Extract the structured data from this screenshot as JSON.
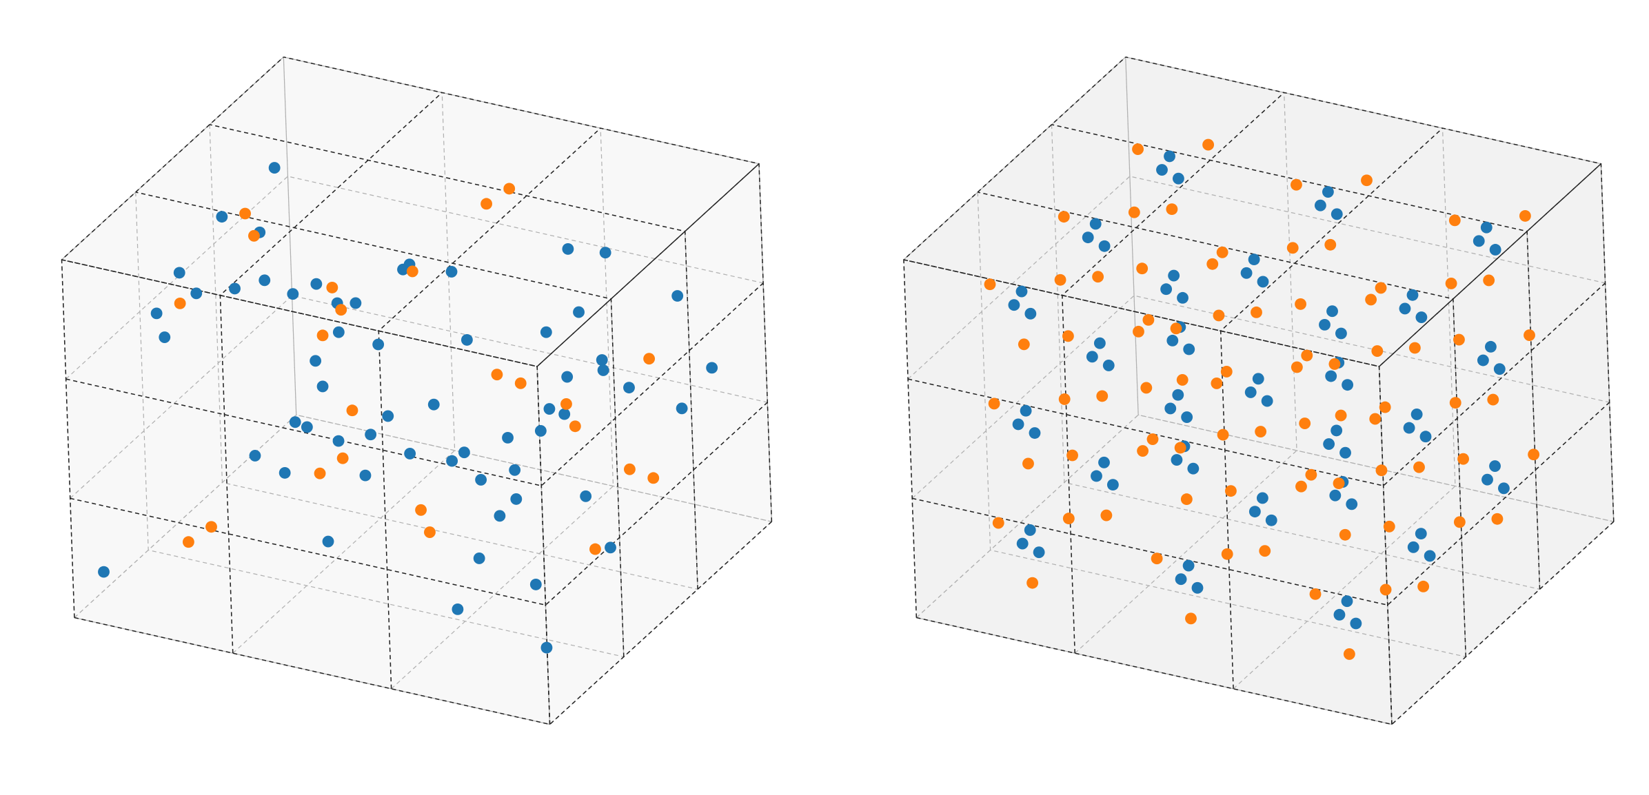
{
  "chart_data": [
    {
      "type": "scatter3d",
      "xlim": [
        0,
        3
      ],
      "ylim": [
        0,
        3
      ],
      "zlim": [
        0,
        3
      ],
      "xticks": [
        0,
        1,
        2,
        3
      ],
      "yticks": [
        0,
        1,
        2,
        3
      ],
      "zticks": [
        0,
        1,
        2,
        3
      ],
      "grid": true,
      "pane_color": "#f8f8f8",
      "series": [
        {
          "color": "#1f77b4",
          "x": [
            0.1,
            0.3,
            0.5,
            0.2,
            0.7,
            0.9,
            1.1,
            0.4,
            1.3,
            1.6,
            1.8,
            0.6,
            2.0,
            2.2,
            2.5,
            2.8,
            1.0,
            1.4,
            1.9,
            2.3,
            2.7,
            0.2,
            0.8,
            1.2,
            1.7,
            2.1,
            2.6,
            2.9,
            0.5,
            1.5,
            2.4,
            0.3,
            0.9,
            1.3,
            1.8,
            2.2,
            2.6,
            0.7,
            1.1,
            1.6,
            2.0,
            2.5,
            2.8,
            0.4,
            1.0,
            1.5,
            1.9,
            2.3,
            2.7,
            0.1,
            0.6,
            1.2,
            1.7,
            2.1,
            2.4,
            2.9,
            0.8,
            1.4,
            2.0,
            2.6
          ],
          "y": [
            0.2,
            1.5,
            2.8,
            0.9,
            2.1,
            0.4,
            1.7,
            2.5,
            0.6,
            2.9,
            1.1,
            0.3,
            2.2,
            0.8,
            1.6,
            2.7,
            1.3,
            0.1,
            2.4,
            1.9,
            0.5,
            2.6,
            1.0,
            2.0,
            0.7,
            2.8,
            1.4,
            0.2,
            1.8,
            2.3,
            0.9,
            0.6,
            2.7,
            1.2,
            0.4,
            2.5,
            1.7,
            1.0,
            2.2,
            0.3,
            1.5,
            2.9,
            0.8,
            2.0,
            1.3,
            0.5,
            2.6,
            1.1,
            0.2,
            2.4,
            1.9,
            2.8,
            1.6,
            0.7,
            2.1,
            1.4,
            0.1,
            2.3,
            0.9,
            2.7
          ],
          "z": [
            0.3,
            2.6,
            1.2,
            1.9,
            0.5,
            2.8,
            0.9,
            1.5,
            2.2,
            0.4,
            1.7,
            2.9,
            1.1,
            0.7,
            2.4,
            1.4,
            0.2,
            2.0,
            1.6,
            2.7,
            0.8,
            1.3,
            2.5,
            0.6,
            1.8,
            2.1,
            1.0,
            0.5,
            2.9,
            0.3,
            1.2,
            2.3,
            1.7,
            0.9,
            2.6,
            1.4,
            0.4,
            1.0,
            2.0,
            2.7,
            0.6,
            1.8,
            2.4,
            0.2,
            1.5,
            2.8,
            0.8,
            1.3,
            2.2,
            1.9,
            0.7,
            1.1,
            2.5,
            0.3,
            1.6,
            2.0,
            2.9,
            0.5,
            1.4,
            1.0
          ]
        },
        {
          "color": "#ff7f0e",
          "x": [
            0.5,
            0.6,
            1.5,
            1.4,
            2.5,
            2.6,
            0.5,
            0.4,
            1.5,
            1.6,
            2.5,
            2.4,
            0.5,
            0.6,
            1.5,
            1.6,
            2.5,
            2.4,
            0.5,
            1.5,
            2.5,
            0.6,
            1.4,
            2.6
          ],
          "y": [
            0.5,
            0.6,
            0.5,
            0.4,
            0.5,
            0.6,
            1.5,
            1.6,
            1.5,
            1.4,
            1.5,
            1.6,
            2.5,
            2.4,
            2.5,
            2.6,
            2.5,
            2.4,
            0.5,
            1.5,
            2.5,
            2.5,
            0.5,
            1.5
          ],
          "z": [
            0.5,
            0.6,
            1.5,
            1.4,
            2.5,
            2.4,
            2.5,
            2.6,
            0.5,
            0.4,
            1.5,
            1.6,
            1.5,
            1.4,
            2.5,
            2.6,
            0.5,
            0.6,
            2.5,
            2.5,
            1.5,
            0.5,
            2.5,
            0.5
          ]
        }
      ]
    },
    {
      "type": "scatter3d",
      "xlim": [
        0,
        3
      ],
      "ylim": [
        0,
        3
      ],
      "zlim": [
        0,
        3
      ],
      "xticks": [
        0,
        1,
        2,
        3
      ],
      "yticks": [
        0,
        1,
        2,
        3
      ],
      "zticks": [
        0,
        1,
        2,
        3
      ],
      "grid": true,
      "pane_color": "#f2f2f2",
      "series": [
        {
          "color": "#1f77b4",
          "x": [
            0.5,
            0.6,
            0.4,
            0.5,
            0.6,
            0.4,
            0.5,
            0.6,
            0.4,
            0.5,
            0.6,
            0.4,
            0.5,
            0.6,
            0.4,
            0.5,
            0.6,
            0.4,
            0.5,
            0.6,
            0.4,
            0.5,
            0.6,
            0.4,
            0.5,
            0.6,
            0.4,
            1.5,
            1.6,
            1.4,
            1.5,
            1.6,
            1.4,
            1.5,
            1.6,
            1.4,
            1.5,
            1.6,
            1.4,
            1.5,
            1.6,
            1.4,
            1.5,
            1.6,
            1.4,
            1.5,
            1.6,
            1.4,
            1.5,
            1.6,
            1.4,
            1.5,
            1.6,
            1.4,
            2.5,
            2.6,
            2.4,
            2.5,
            2.6,
            2.4,
            2.5,
            2.6,
            2.4,
            2.5,
            2.6,
            2.4,
            2.5,
            2.6,
            2.4,
            2.5,
            2.6,
            2.4,
            2.5,
            2.6,
            2.4,
            2.5,
            2.6,
            2.4,
            2.5,
            2.6,
            2.4
          ],
          "y": [
            0.5,
            0.4,
            0.6,
            0.5,
            0.4,
            0.6,
            0.5,
            0.4,
            0.6,
            1.5,
            1.4,
            1.6,
            1.5,
            1.4,
            1.6,
            1.5,
            1.4,
            1.6,
            2.5,
            2.4,
            2.6,
            2.5,
            2.4,
            2.6,
            2.5,
            2.4,
            2.6,
            0.5,
            0.4,
            0.6,
            0.5,
            0.4,
            0.6,
            0.5,
            0.4,
            0.6,
            1.5,
            1.4,
            1.6,
            1.5,
            1.4,
            1.6,
            1.5,
            1.4,
            1.6,
            2.5,
            2.4,
            2.6,
            2.5,
            2.4,
            2.6,
            2.5,
            2.4,
            2.6,
            0.5,
            0.4,
            0.6,
            0.5,
            0.4,
            0.6,
            0.5,
            0.4,
            0.6,
            1.5,
            1.4,
            1.6,
            1.5,
            1.4,
            1.6,
            1.5,
            1.4,
            1.6,
            2.5,
            2.4,
            2.6,
            2.5,
            2.4,
            2.6,
            2.5,
            2.4,
            2.6
          ],
          "z": [
            0.6,
            0.5,
            0.4,
            1.6,
            1.5,
            1.4,
            2.6,
            2.5,
            2.4,
            0.6,
            0.5,
            0.4,
            1.6,
            1.5,
            1.4,
            2.6,
            2.5,
            2.4,
            0.6,
            0.5,
            0.4,
            1.6,
            1.5,
            1.4,
            2.6,
            2.5,
            2.4,
            0.6,
            0.5,
            0.4,
            1.6,
            1.5,
            1.4,
            2.6,
            2.5,
            2.4,
            0.6,
            0.5,
            0.4,
            1.6,
            1.5,
            1.4,
            2.6,
            2.5,
            2.4,
            0.6,
            0.5,
            0.4,
            1.6,
            1.5,
            1.4,
            2.6,
            2.5,
            2.4,
            0.6,
            0.5,
            0.4,
            1.6,
            1.5,
            1.4,
            2.6,
            2.5,
            2.4,
            0.6,
            0.5,
            0.4,
            1.6,
            1.5,
            1.4,
            2.6,
            2.5,
            2.4,
            0.6,
            0.5,
            0.4,
            1.6,
            1.5,
            1.4,
            2.6,
            2.5,
            2.4
          ]
        },
        {
          "color": "#ff7f0e",
          "x": [
            0.7,
            0.3,
            0.6,
            0.7,
            0.3,
            0.6,
            0.7,
            0.3,
            0.6,
            0.7,
            0.3,
            0.6,
            0.7,
            0.3,
            0.6,
            0.7,
            0.3,
            0.6,
            0.7,
            0.3,
            0.6,
            0.7,
            0.3,
            0.6,
            0.7,
            0.3,
            0.6,
            1.7,
            1.3,
            1.6,
            1.7,
            1.3,
            1.6,
            1.7,
            1.3,
            1.6,
            1.7,
            1.3,
            1.6,
            1.7,
            1.3,
            1.6,
            1.7,
            1.3,
            1.6,
            1.7,
            1.3,
            1.6,
            1.7,
            1.3,
            1.6,
            1.7,
            1.3,
            1.6,
            2.7,
            2.3,
            2.6,
            2.7,
            2.3,
            2.6,
            2.7,
            2.3,
            2.6,
            2.7,
            2.3,
            2.6,
            2.7,
            2.3,
            2.6,
            2.7,
            2.3,
            2.6,
            2.7,
            2.3,
            2.6,
            2.7,
            2.3,
            2.6,
            2.7,
            2.3,
            2.6
          ],
          "y": [
            0.6,
            0.5,
            0.3,
            0.6,
            0.5,
            0.3,
            0.6,
            0.5,
            0.3,
            1.6,
            1.5,
            1.3,
            1.6,
            1.5,
            1.3,
            1.6,
            1.5,
            1.3,
            2.6,
            2.5,
            2.3,
            2.6,
            2.5,
            2.3,
            2.6,
            2.5,
            2.3,
            0.6,
            0.5,
            0.3,
            0.6,
            0.5,
            0.3,
            0.6,
            0.5,
            0.3,
            1.6,
            1.5,
            1.3,
            1.6,
            1.5,
            1.3,
            1.6,
            1.5,
            1.3,
            2.6,
            2.5,
            2.3,
            2.6,
            2.5,
            2.3,
            2.6,
            2.5,
            2.3,
            0.6,
            0.5,
            0.3,
            0.6,
            0.5,
            0.3,
            0.6,
            0.5,
            0.3,
            1.6,
            1.5,
            1.3,
            1.6,
            1.5,
            1.3,
            1.6,
            1.5,
            1.3,
            2.6,
            2.5,
            2.3,
            2.6,
            2.5,
            2.3,
            2.6,
            2.5,
            2.3
          ],
          "z": [
            0.7,
            0.6,
            0.3,
            1.7,
            1.6,
            1.3,
            2.7,
            2.6,
            2.3,
            0.7,
            0.6,
            0.3,
            1.7,
            1.6,
            1.3,
            2.7,
            2.6,
            2.3,
            0.7,
            0.6,
            0.3,
            1.7,
            1.6,
            1.3,
            2.7,
            2.6,
            2.3,
            0.7,
            0.6,
            0.3,
            1.7,
            1.6,
            1.3,
            2.7,
            2.6,
            2.3,
            0.7,
            0.6,
            0.3,
            1.7,
            1.6,
            1.3,
            2.7,
            2.6,
            2.3,
            0.7,
            0.6,
            0.3,
            1.7,
            1.6,
            1.3,
            2.7,
            2.6,
            2.3,
            0.7,
            0.6,
            0.3,
            1.7,
            1.6,
            1.3,
            2.7,
            2.6,
            2.3,
            0.7,
            0.6,
            0.3,
            1.7,
            1.6,
            1.3,
            2.7,
            2.6,
            2.3,
            0.7,
            0.6,
            0.3,
            1.7,
            1.6,
            1.3,
            2.7,
            2.6,
            2.3
          ]
        }
      ]
    }
  ]
}
